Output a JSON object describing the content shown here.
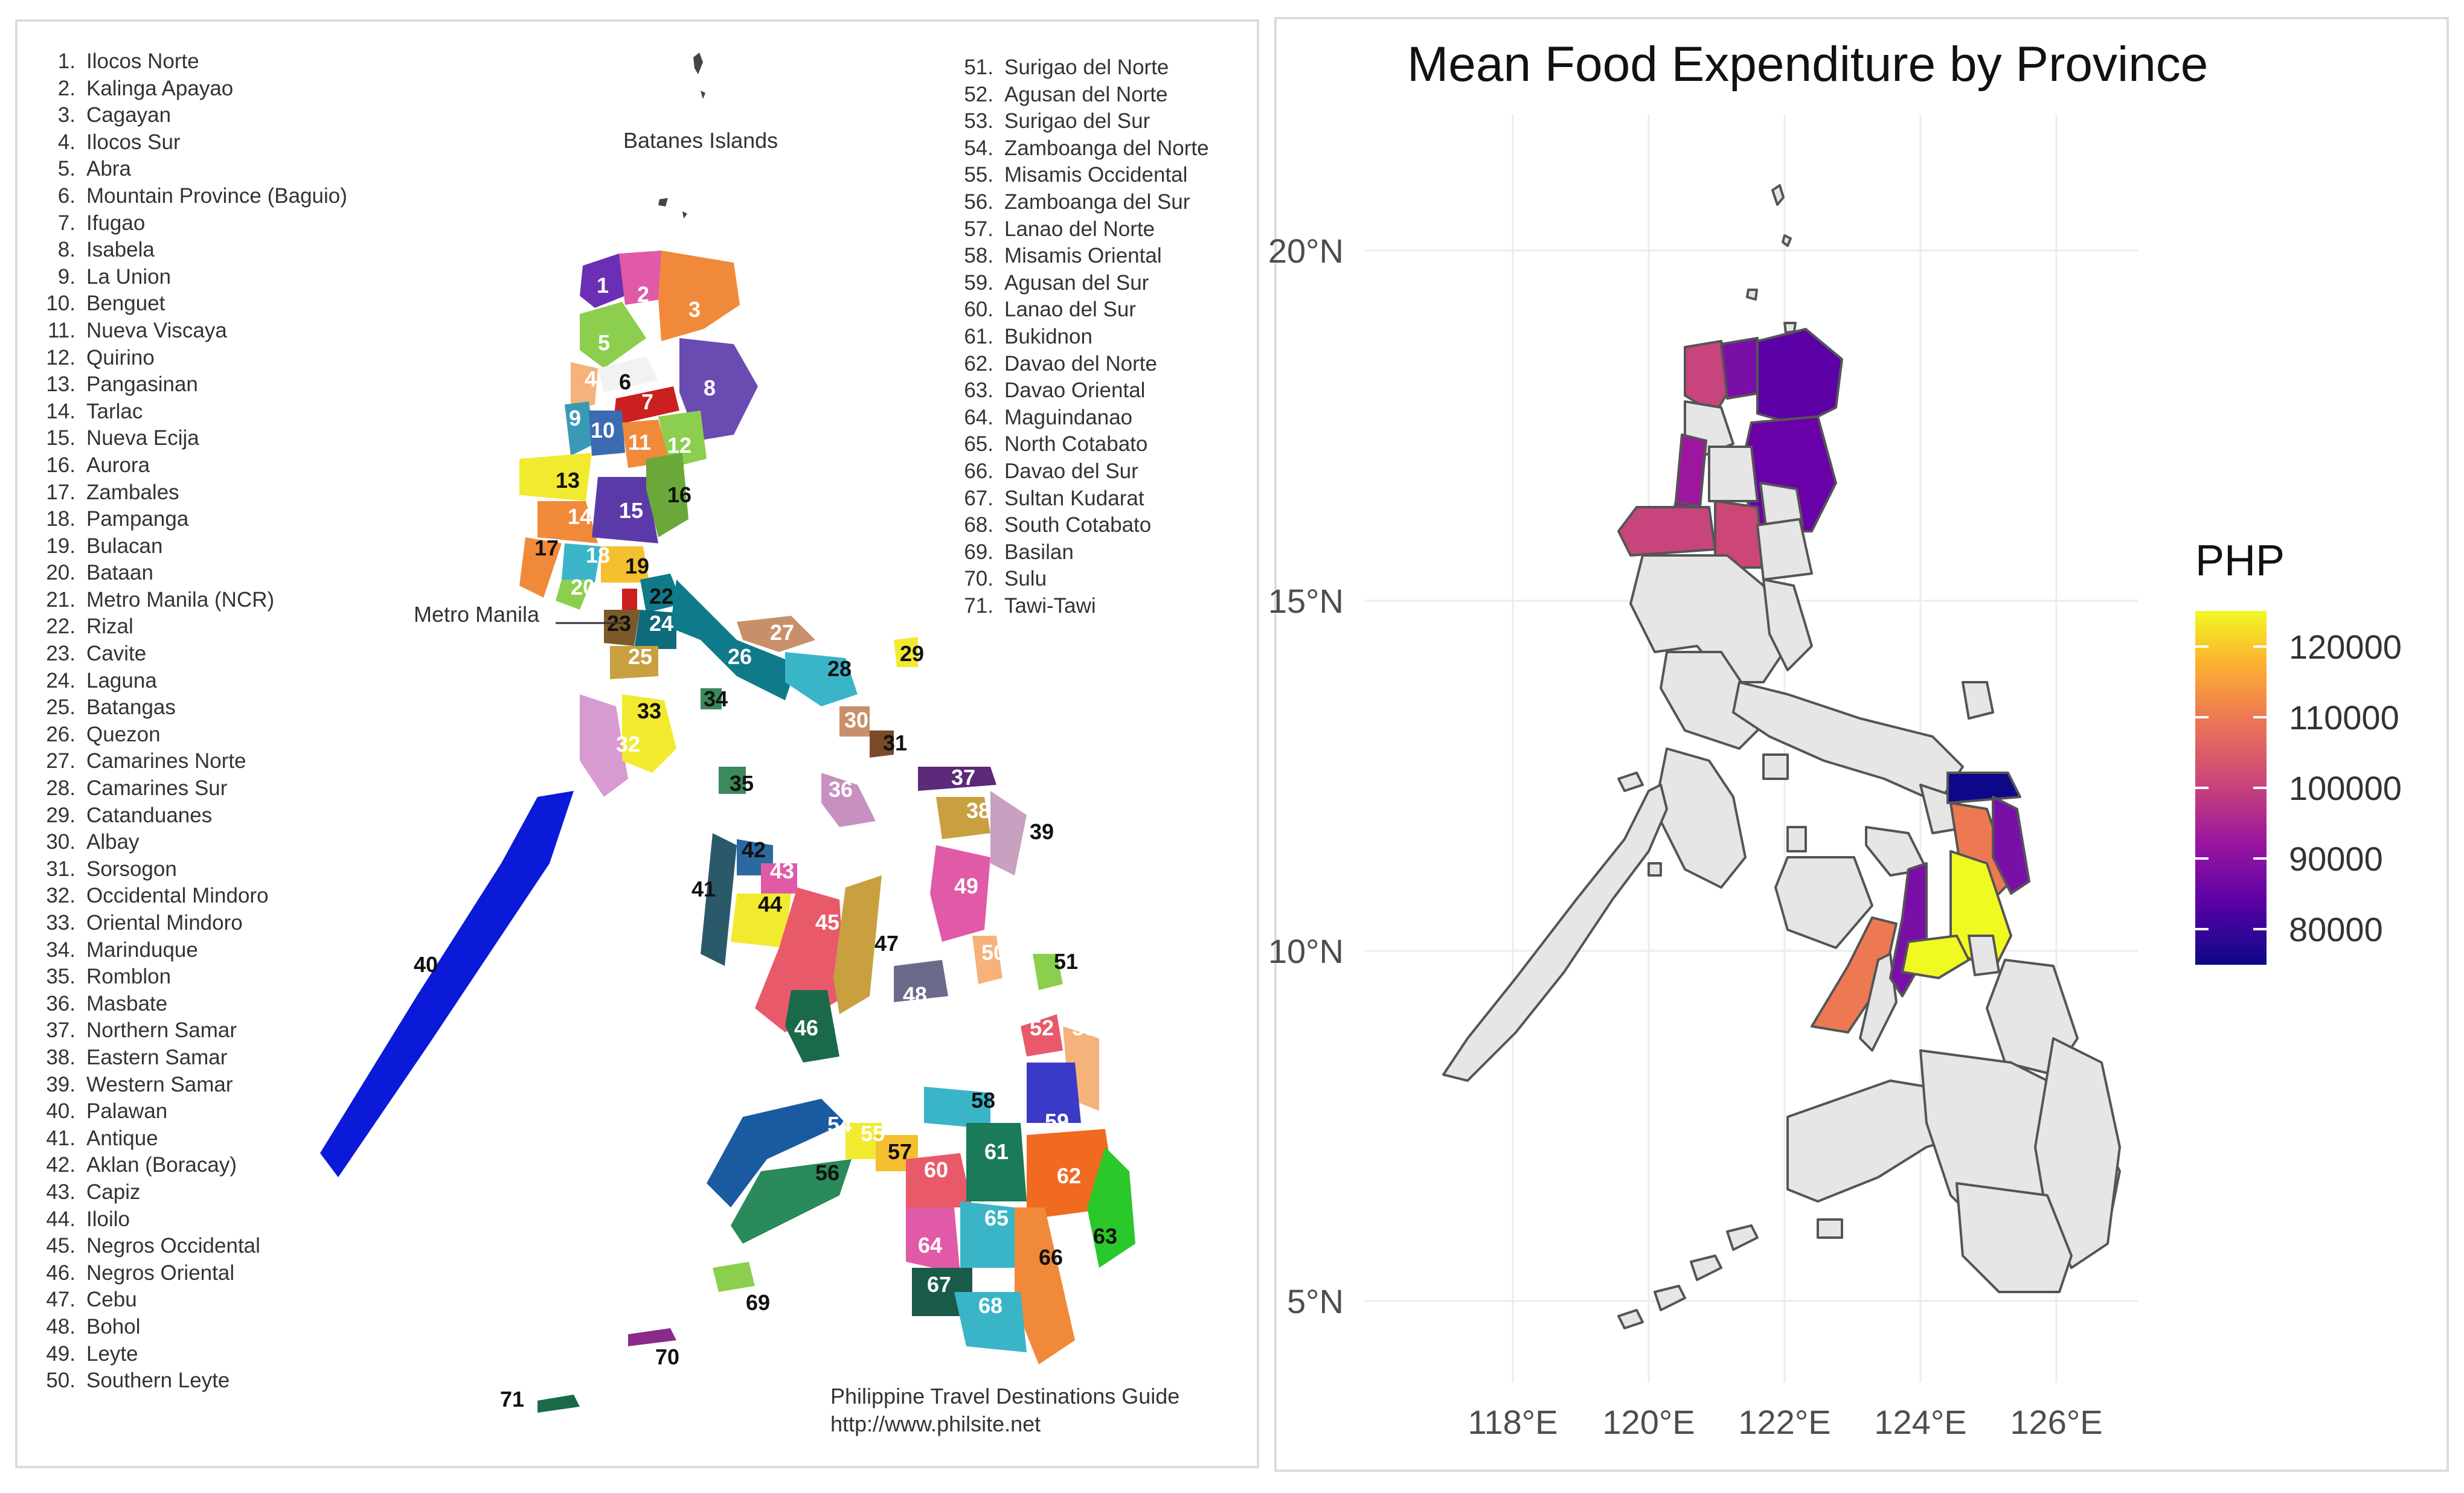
{
  "left_map": {
    "provinces_left": [
      {
        "num": "1.",
        "name": "Ilocos Norte"
      },
      {
        "num": "2.",
        "name": "Kalinga Apayao"
      },
      {
        "num": "3.",
        "name": "Cagayan"
      },
      {
        "num": "4.",
        "name": "Ilocos Sur"
      },
      {
        "num": "5.",
        "name": "Abra"
      },
      {
        "num": "6.",
        "name": "Mountain Province (Baguio)"
      },
      {
        "num": "7.",
        "name": "Ifugao"
      },
      {
        "num": "8.",
        "name": "Isabela"
      },
      {
        "num": "9.",
        "name": "La Union"
      },
      {
        "num": "10.",
        "name": "Benguet"
      },
      {
        "num": "11.",
        "name": "Nueva Viscaya"
      },
      {
        "num": "12.",
        "name": "Quirino"
      },
      {
        "num": "13.",
        "name": "Pangasinan"
      },
      {
        "num": "14.",
        "name": "Tarlac"
      },
      {
        "num": "15.",
        "name": "Nueva Ecija"
      },
      {
        "num": "16.",
        "name": "Aurora"
      },
      {
        "num": "17.",
        "name": "Zambales"
      },
      {
        "num": "18.",
        "name": "Pampanga"
      },
      {
        "num": "19.",
        "name": "Bulacan"
      },
      {
        "num": "20.",
        "name": "Bataan"
      },
      {
        "num": "21.",
        "name": "Metro Manila (NCR)"
      },
      {
        "num": "22.",
        "name": "Rizal"
      },
      {
        "num": "23.",
        "name": "Cavite"
      },
      {
        "num": "24.",
        "name": "Laguna"
      },
      {
        "num": "25.",
        "name": "Batangas"
      },
      {
        "num": "26.",
        "name": "Quezon"
      },
      {
        "num": "27.",
        "name": "Camarines Norte"
      },
      {
        "num": "28.",
        "name": "Camarines Sur"
      },
      {
        "num": "29.",
        "name": "Catanduanes"
      },
      {
        "num": "30.",
        "name": "Albay"
      },
      {
        "num": "31.",
        "name": "Sorsogon"
      },
      {
        "num": "32.",
        "name": "Occidental Mindoro"
      },
      {
        "num": "33.",
        "name": "Oriental Mindoro"
      },
      {
        "num": "34.",
        "name": "Marinduque"
      },
      {
        "num": "35.",
        "name": "Romblon"
      },
      {
        "num": "36.",
        "name": "Masbate"
      },
      {
        "num": "37.",
        "name": "Northern Samar"
      },
      {
        "num": "38.",
        "name": "Eastern Samar"
      },
      {
        "num": "39.",
        "name": "Western Samar"
      },
      {
        "num": "40.",
        "name": "Palawan"
      },
      {
        "num": "41.",
        "name": "Antique"
      },
      {
        "num": "42.",
        "name": "Aklan (Boracay)"
      },
      {
        "num": "43.",
        "name": "Capiz"
      },
      {
        "num": "44.",
        "name": "Iloilo"
      },
      {
        "num": "45.",
        "name": "Negros Occidental"
      },
      {
        "num": "46.",
        "name": "Negros Oriental"
      },
      {
        "num": "47.",
        "name": "Cebu"
      },
      {
        "num": "48.",
        "name": "Bohol"
      },
      {
        "num": "49.",
        "name": "Leyte"
      },
      {
        "num": "50.",
        "name": "Southern Leyte"
      }
    ],
    "provinces_right": [
      {
        "num": "51.",
        "name": "Surigao del Norte"
      },
      {
        "num": "52.",
        "name": "Agusan del Norte"
      },
      {
        "num": "53.",
        "name": "Surigao del Sur"
      },
      {
        "num": "54.",
        "name": "Zamboanga del Norte"
      },
      {
        "num": "55.",
        "name": "Misamis Occidental"
      },
      {
        "num": "56.",
        "name": "Zamboanga del Sur"
      },
      {
        "num": "57.",
        "name": "Lanao del Norte"
      },
      {
        "num": "58.",
        "name": "Misamis Oriental"
      },
      {
        "num": "59.",
        "name": "Agusan del Sur"
      },
      {
        "num": "60.",
        "name": "Lanao del Sur"
      },
      {
        "num": "61.",
        "name": "Bukidnon"
      },
      {
        "num": "62.",
        "name": "Davao del Norte"
      },
      {
        "num": "63.",
        "name": "Davao Oriental"
      },
      {
        "num": "64.",
        "name": "Maguindanao"
      },
      {
        "num": "65.",
        "name": "North Cotabato"
      },
      {
        "num": "66.",
        "name": "Davao del Sur"
      },
      {
        "num": "67.",
        "name": "Sultan Kudarat"
      },
      {
        "num": "68.",
        "name": "South Cotabato"
      },
      {
        "num": "69.",
        "name": "Basilan"
      },
      {
        "num": "70.",
        "name": "Sulu"
      },
      {
        "num": "71.",
        "name": "Tawi-Tawi"
      }
    ],
    "label_batanes": "Batanes Islands",
    "label_manila": "Metro Manila",
    "credit_line1": "Philippine Travel Destinations Guide",
    "credit_line2": "http://www.philsite.net"
  },
  "right_map": {
    "title": "Mean Food Expenditure by Province",
    "lat_ticks": [
      "20°N",
      "15°N",
      "10°N",
      "5°N"
    ],
    "lon_ticks": [
      "118°E",
      "120°E",
      "122°E",
      "124°E",
      "126°E"
    ],
    "legend": {
      "title": "PHP",
      "ticks": [
        "120000",
        "110000",
        "100000",
        "90000",
        "80000"
      ],
      "range": [
        75000,
        125000
      ],
      "palette": "plasma"
    },
    "missing_color": "#e6e6e6"
  }
}
